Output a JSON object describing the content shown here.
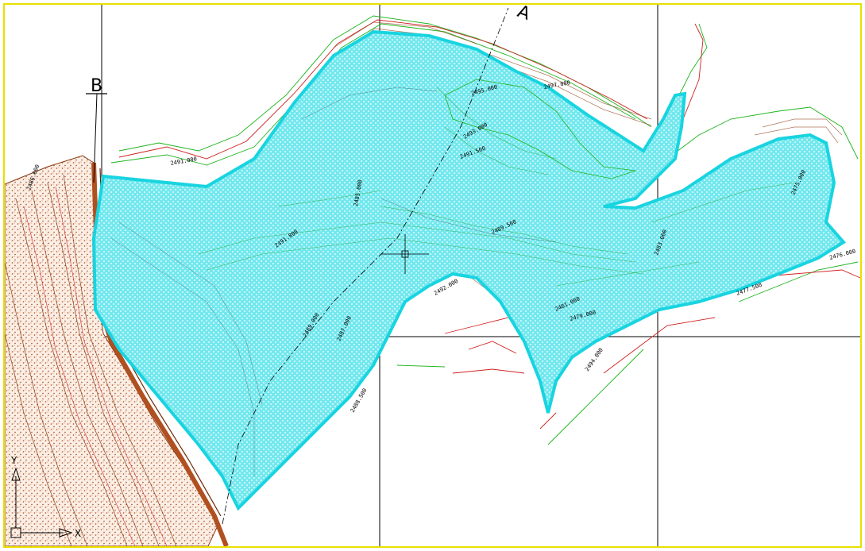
{
  "view": {
    "background": "#ffffff",
    "frame_color": "#e8e000",
    "reservoir_fill": "#6fe6ec",
    "reservoir_edge": "#18d4e0",
    "contour_green": "#1db41d",
    "contour_red": "#d02020",
    "contour_brown": "#8b3a14",
    "dam_fill": "#c8703c",
    "grid_line": "#000000"
  },
  "section_marks": [
    {
      "id": "B",
      "label": "B"
    },
    {
      "id": "A",
      "label": "A"
    }
  ],
  "ucs_icon": {
    "x_label": "X",
    "y_label": "Y"
  },
  "elevation_labels": [
    "2491.800",
    "2491.000",
    "2489.000",
    "2487.000",
    "2485.000",
    "2493.000",
    "2491.500",
    "2489.500",
    "2495.000",
    "2497.000",
    "2483.000",
    "2481.000",
    "2479.000",
    "2477.500",
    "2476.000",
    "2475.000",
    "2492.000",
    "2494.000",
    "2488.500",
    "2486.000"
  ]
}
